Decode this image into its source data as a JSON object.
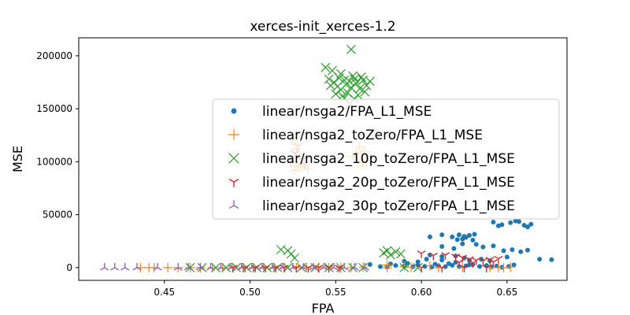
{
  "chart_data": {
    "type": "scatter",
    "title": "xerces-init_xerces-1.2",
    "xlabel": "FPA",
    "ylabel": "MSE",
    "xlim": [
      0.4,
      0.685
    ],
    "ylim": [
      -12000,
      217000
    ],
    "xticks": [
      0.45,
      0.5,
      0.55,
      0.6,
      0.65
    ],
    "xtick_labels": [
      "0.45",
      "0.50",
      "0.55",
      "0.60",
      "0.65"
    ],
    "yticks": [
      0,
      50000,
      100000,
      150000,
      200000
    ],
    "ytick_labels": [
      "0",
      "50000",
      "100000",
      "150000",
      "200000"
    ],
    "legend_position": "center-right",
    "grid": false,
    "series": [
      {
        "name": "linear/nsga2/FPA_L1_MSE",
        "marker": "dot",
        "color": "#1f77b4",
        "points": [
          [
            0.612,
            31000
          ],
          [
            0.618,
            29000
          ],
          [
            0.622,
            31000
          ],
          [
            0.625,
            29500
          ],
          [
            0.628,
            30500
          ],
          [
            0.624,
            27000
          ],
          [
            0.63,
            26000
          ],
          [
            0.626,
            28500
          ],
          [
            0.631,
            31500
          ],
          [
            0.621,
            26500
          ],
          [
            0.642,
            43000
          ],
          [
            0.647,
            40500
          ],
          [
            0.652,
            42500
          ],
          [
            0.657,
            43500
          ],
          [
            0.66,
            40000
          ],
          [
            0.664,
            41000
          ],
          [
            0.662,
            38500
          ],
          [
            0.645,
            39500
          ],
          [
            0.655,
            44000
          ],
          [
            0.605,
            29000
          ],
          [
            0.612,
            20000
          ],
          [
            0.624,
            22500
          ],
          [
            0.632,
            22000
          ],
          [
            0.636,
            19500
          ],
          [
            0.642,
            20500
          ],
          [
            0.619,
            18000
          ],
          [
            0.648,
            16000
          ],
          [
            0.653,
            17000
          ],
          [
            0.658,
            15000
          ],
          [
            0.662,
            16500
          ],
          [
            0.669,
            8000
          ],
          [
            0.676,
            7500
          ],
          [
            0.65,
            10000
          ],
          [
            0.605,
            12000
          ],
          [
            0.612,
            10500
          ],
          [
            0.62,
            11000
          ],
          [
            0.625,
            9000
          ],
          [
            0.628,
            7000
          ],
          [
            0.635,
            8000
          ],
          [
            0.64,
            6500
          ],
          [
            0.603,
            8000
          ],
          [
            0.57,
            3000
          ],
          [
            0.576,
            1000
          ],
          [
            0.58,
            500
          ],
          [
            0.585,
            2000
          ],
          [
            0.59,
            1500
          ],
          [
            0.595,
            800
          ],
          [
            0.598,
            2500
          ],
          [
            0.602,
            1200
          ],
          [
            0.606,
            600
          ],
          [
            0.61,
            1800
          ],
          [
            0.614,
            900
          ],
          [
            0.618,
            2200
          ],
          [
            0.622,
            1000
          ],
          [
            0.626,
            1600
          ],
          [
            0.63,
            3000
          ],
          [
            0.634,
            1100
          ],
          [
            0.638,
            2000
          ],
          [
            0.641,
            700
          ],
          [
            0.644,
            1500
          ],
          [
            0.647,
            400
          ],
          [
            0.651,
            1200
          ],
          [
            0.654,
            2600
          ],
          [
            0.582,
            3500
          ],
          [
            0.592,
            4000
          ],
          [
            0.608,
            3200
          ],
          [
            0.616,
            3800
          ],
          [
            0.628,
            2700
          ],
          [
            0.59,
            6000
          ],
          [
            0.598,
            5500
          ],
          [
            0.612,
            7200
          ],
          [
            0.62,
            5000
          ]
        ]
      },
      {
        "name": "linear/nsga2_toZero/FPA_L1_MSE",
        "marker": "plus",
        "color": "#ff7f0e",
        "points": [
          [
            0.436,
            0
          ],
          [
            0.441,
            0
          ],
          [
            0.444,
            0
          ],
          [
            0.452,
            0
          ],
          [
            0.458,
            0
          ],
          [
            0.465,
            0
          ],
          [
            0.471,
            0
          ],
          [
            0.478,
            0
          ],
          [
            0.484,
            0
          ],
          [
            0.49,
            0
          ],
          [
            0.496,
            0
          ],
          [
            0.502,
            0
          ],
          [
            0.508,
            0
          ],
          [
            0.514,
            0
          ],
          [
            0.52,
            0
          ],
          [
            0.527,
            0
          ],
          [
            0.533,
            0
          ],
          [
            0.54,
            0
          ],
          [
            0.546,
            0
          ],
          [
            0.553,
            0
          ],
          [
            0.559,
            0
          ],
          [
            0.566,
            500
          ],
          [
            0.58,
            0
          ],
          [
            0.594,
            300
          ],
          [
            0.61,
            0
          ],
          [
            0.624,
            200
          ],
          [
            0.64,
            0
          ],
          [
            0.645,
            0
          ],
          [
            0.648,
            0
          ],
          [
            0.652,
            500
          ],
          [
            0.524,
            100000
          ],
          [
            0.528,
            96000
          ],
          [
            0.531,
            98000
          ],
          [
            0.534,
            93000
          ],
          [
            0.526,
            92000
          ],
          [
            0.522,
            103000
          ],
          [
            0.53,
            95000
          ],
          [
            0.527,
            112000
          ],
          [
            0.525,
            120000
          ],
          [
            0.562,
            108000
          ],
          [
            0.565,
            103000
          ],
          [
            0.568,
            101000
          ],
          [
            0.563,
            99000
          ],
          [
            0.566,
            96000
          ],
          [
            0.56,
            105000
          ],
          [
            0.567,
            110000
          ],
          [
            0.564,
            114000
          ],
          [
            0.58,
            2500
          ],
          [
            0.59,
            1200
          ],
          [
            0.605,
            1800
          ]
        ]
      },
      {
        "name": "linear/nsga2_10p_toZero/FPA_L1_MSE",
        "marker": "x",
        "color": "#2ca02c",
        "points": [
          [
            0.544,
            189000
          ],
          [
            0.548,
            186000
          ],
          [
            0.546,
            178000
          ],
          [
            0.549,
            175000
          ],
          [
            0.551,
            171000
          ],
          [
            0.553,
            168000
          ],
          [
            0.552,
            179000
          ],
          [
            0.555,
            177000
          ],
          [
            0.556,
            173000
          ],
          [
            0.558,
            176000
          ],
          [
            0.559,
            170000
          ],
          [
            0.561,
            178000
          ],
          [
            0.562,
            174000
          ],
          [
            0.564,
            169000
          ],
          [
            0.566,
            177000
          ],
          [
            0.568,
            172000
          ],
          [
            0.57,
            176000
          ],
          [
            0.56,
            181000
          ],
          [
            0.557,
            165000
          ],
          [
            0.563,
            163000
          ],
          [
            0.555,
            160000
          ],
          [
            0.567,
            166000
          ],
          [
            0.553,
            183000
          ],
          [
            0.565,
            180000
          ],
          [
            0.547,
            172000
          ],
          [
            0.55,
            164000
          ],
          [
            0.554,
            162000
          ],
          [
            0.561,
            159000
          ],
          [
            0.559,
            206000
          ],
          [
            0.558,
            154000
          ],
          [
            0.518,
            17000
          ],
          [
            0.522,
            16000
          ],
          [
            0.524,
            13000
          ],
          [
            0.526,
            9000
          ],
          [
            0.578,
            14000
          ],
          [
            0.582,
            12000
          ],
          [
            0.585,
            15000
          ],
          [
            0.588,
            13000
          ],
          [
            0.58,
            16000
          ],
          [
            0.465,
            0
          ],
          [
            0.472,
            0
          ],
          [
            0.48,
            0
          ],
          [
            0.486,
            0
          ],
          [
            0.492,
            0
          ],
          [
            0.498,
            0
          ],
          [
            0.504,
            0
          ],
          [
            0.51,
            0
          ],
          [
            0.516,
            0
          ],
          [
            0.522,
            0
          ],
          [
            0.53,
            0
          ],
          [
            0.538,
            0
          ],
          [
            0.546,
            0
          ],
          [
            0.553,
            0
          ],
          [
            0.56,
            0
          ],
          [
            0.566,
            0
          ],
          [
            0.59,
            0
          ],
          [
            0.598,
            0
          ]
        ]
      },
      {
        "name": "linear/nsga2_20p_toZero/FPA_L1_MSE",
        "marker": "tri_down",
        "color": "#d62728",
        "points": [
          [
            0.6,
            13500
          ],
          [
            0.607,
            11500
          ],
          [
            0.614,
            12000
          ],
          [
            0.62,
            10500
          ],
          [
            0.624,
            9500
          ],
          [
            0.628,
            8000
          ],
          [
            0.632,
            7000
          ],
          [
            0.636,
            6500
          ],
          [
            0.64,
            7500
          ],
          [
            0.645,
            8500
          ],
          [
            0.622,
            5000
          ],
          [
            0.63,
            4500
          ],
          [
            0.642,
            5500
          ],
          [
            0.49,
            0
          ],
          [
            0.497,
            0
          ],
          [
            0.503,
            0
          ],
          [
            0.509,
            0
          ],
          [
            0.515,
            0
          ],
          [
            0.52,
            0
          ],
          [
            0.527,
            0
          ],
          [
            0.534,
            0
          ],
          [
            0.54,
            0
          ],
          [
            0.546,
            0
          ],
          [
            0.552,
            0
          ],
          [
            0.6,
            0
          ],
          [
            0.612,
            0
          ],
          [
            0.625,
            0
          ],
          [
            0.638,
            0
          ],
          [
            0.526,
            108000
          ],
          [
            0.53,
            102000
          ],
          [
            0.532,
            98000
          ],
          [
            0.528,
            115000
          ],
          [
            0.524,
            99000
          ]
        ]
      },
      {
        "name": "linear/nsga2_30p_toZero/FPA_L1_MSE",
        "marker": "tri_up",
        "color": "#9467bd",
        "points": [
          [
            0.415,
            0
          ],
          [
            0.421,
            0
          ],
          [
            0.427,
            0
          ],
          [
            0.434,
            0
          ],
          [
            0.446,
            0
          ],
          [
            0.458,
            0
          ],
          [
            0.464,
            0
          ],
          [
            0.471,
            0
          ],
          [
            0.477,
            0
          ],
          [
            0.483,
            0
          ],
          [
            0.489,
            0
          ],
          [
            0.495,
            0
          ],
          [
            0.501,
            0
          ],
          [
            0.507,
            0
          ],
          [
            0.513,
            0
          ],
          [
            0.519,
            0
          ],
          [
            0.525,
            0
          ],
          [
            0.531,
            0
          ],
          [
            0.537,
            0
          ],
          [
            0.543,
            0
          ],
          [
            0.549,
            0
          ],
          [
            0.555,
            0
          ],
          [
            0.561,
            0
          ],
          [
            0.567,
            0
          ]
        ]
      }
    ]
  }
}
